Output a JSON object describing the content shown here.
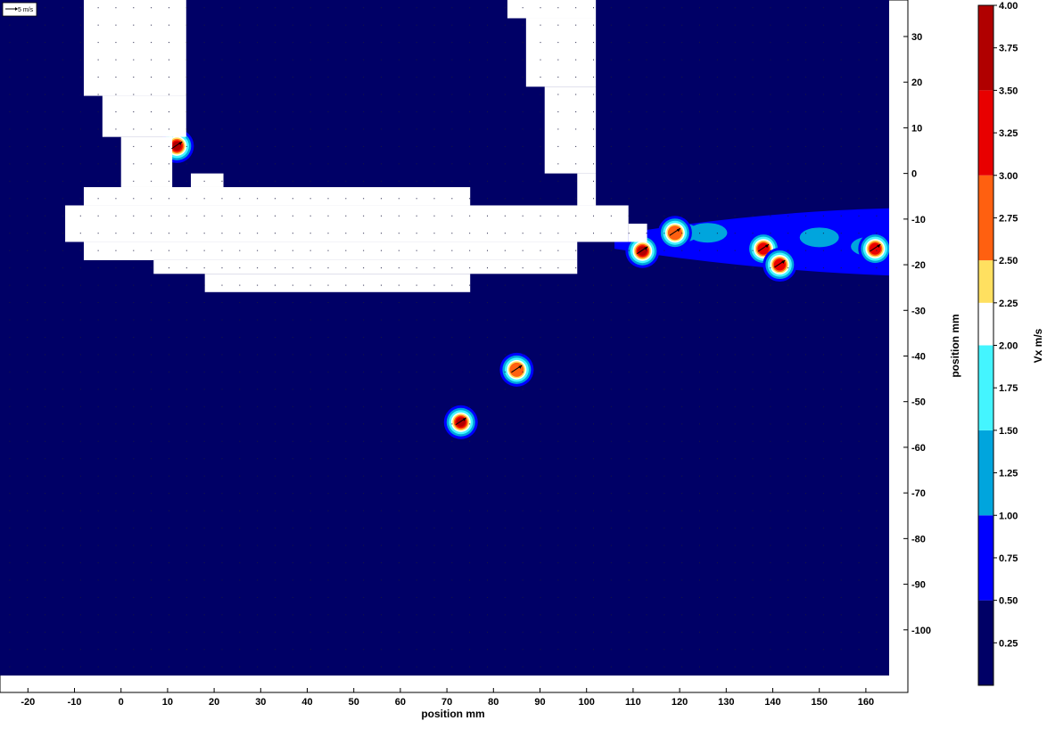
{
  "chart_data": {
    "type": "heatmap",
    "subtype": "PIV vector field with filled velocity contours",
    "reference_vector_label": "5 m/s",
    "xlabel": "position mm",
    "ylabel": "position mm",
    "colorbar_label": "Vx m/s",
    "x_ticks": [
      "-20",
      "-10",
      "0",
      "10",
      "20",
      "30",
      "40",
      "50",
      "60",
      "70",
      "80",
      "90",
      "100",
      "110",
      "120",
      "130",
      "140",
      "150",
      "160"
    ],
    "y_ticks": [
      "30",
      "20",
      "10",
      "0",
      "-10",
      "-20",
      "-30",
      "-40",
      "-50",
      "-60",
      "-70",
      "-80",
      "-90",
      "-100"
    ],
    "xlim": [
      -26,
      165
    ],
    "ylim": [
      -110,
      38
    ],
    "colorbar": {
      "ticks": [
        "0.25",
        "0.50",
        "0.75",
        "1.00",
        "1.25",
        "1.50",
        "1.75",
        "2.00",
        "2.25",
        "2.50",
        "2.75",
        "3.00",
        "3.25",
        "3.50",
        "3.75",
        "4.00"
      ],
      "range": [
        0,
        4.0
      ],
      "levels": [
        {
          "from": 0.0,
          "to": 0.5,
          "color": "#000066"
        },
        {
          "from": 0.5,
          "to": 1.0,
          "color": "#0000ff"
        },
        {
          "from": 1.0,
          "to": 1.5,
          "color": "#00a5dd"
        },
        {
          "from": 1.5,
          "to": 2.0,
          "color": "#44f5ff"
        },
        {
          "from": 2.0,
          "to": 2.25,
          "color": "#ffffff"
        },
        {
          "from": 2.25,
          "to": 2.5,
          "color": "#ffe060"
        },
        {
          "from": 2.5,
          "to": 3.0,
          "color": "#ff6010"
        },
        {
          "from": 3.0,
          "to": 3.5,
          "color": "#e80000"
        },
        {
          "from": 3.5,
          "to": 4.0,
          "color": "#b00000"
        }
      ]
    },
    "background_color": "#000066",
    "masked_regions_color": "#ffffff",
    "masked_regions": [
      {
        "x": [
          -8,
          14
        ],
        "y": [
          17,
          38
        ]
      },
      {
        "x": [
          -4,
          14
        ],
        "y": [
          8,
          17
        ]
      },
      {
        "x": [
          0,
          11
        ],
        "y": [
          -3,
          8
        ]
      },
      {
        "x": [
          15,
          22
        ],
        "y": [
          -3,
          0
        ]
      },
      {
        "x": [
          -8,
          75
        ],
        "y": [
          -7,
          -3
        ]
      },
      {
        "x": [
          -12,
          109
        ],
        "y": [
          -15,
          -7
        ]
      },
      {
        "x": [
          -8,
          98
        ],
        "y": [
          -19,
          -15
        ]
      },
      {
        "x": [
          7,
          98
        ],
        "y": [
          -22,
          -19
        ]
      },
      {
        "x": [
          18,
          75
        ],
        "y": [
          -26,
          -22
        ]
      },
      {
        "x": [
          83,
          102
        ],
        "y": [
          34,
          38
        ]
      },
      {
        "x": [
          87,
          102
        ],
        "y": [
          19,
          34
        ]
      },
      {
        "x": [
          91,
          102
        ],
        "y": [
          0,
          19
        ]
      },
      {
        "x": [
          98,
          102
        ],
        "y": [
          -7,
          0
        ]
      },
      {
        "x": [
          109,
          113
        ],
        "y": [
          -15,
          -11
        ]
      }
    ],
    "jet_band": {
      "x": [
        106,
        165
      ],
      "y_center": [
        -16.5,
        -13.5
      ],
      "value": 0.75
    },
    "hot_spots": [
      {
        "x": 12,
        "y": 6,
        "peak": 3.8
      },
      {
        "x": 112,
        "y": -17,
        "peak": 3.8
      },
      {
        "x": 119,
        "y": -13,
        "peak": 3.2
      },
      {
        "x": 138,
        "y": -16.5,
        "peak": 3.3
      },
      {
        "x": 141.5,
        "y": -20,
        "peak": 3.3
      },
      {
        "x": 162,
        "y": -16.5,
        "peak": 3.3
      },
      {
        "x": 85,
        "y": -43,
        "peak": 2.8
      },
      {
        "x": 73,
        "y": -54.5,
        "peak": 3.8
      }
    ],
    "low_speed_patches": [
      {
        "x": 120,
        "y": -13,
        "value": 1.3
      },
      {
        "x": 126,
        "y": -13,
        "value": 1.3
      },
      {
        "x": 150,
        "y": -14,
        "value": 1.3
      },
      {
        "x": 161,
        "y": -16,
        "value": 1.3
      }
    ]
  }
}
